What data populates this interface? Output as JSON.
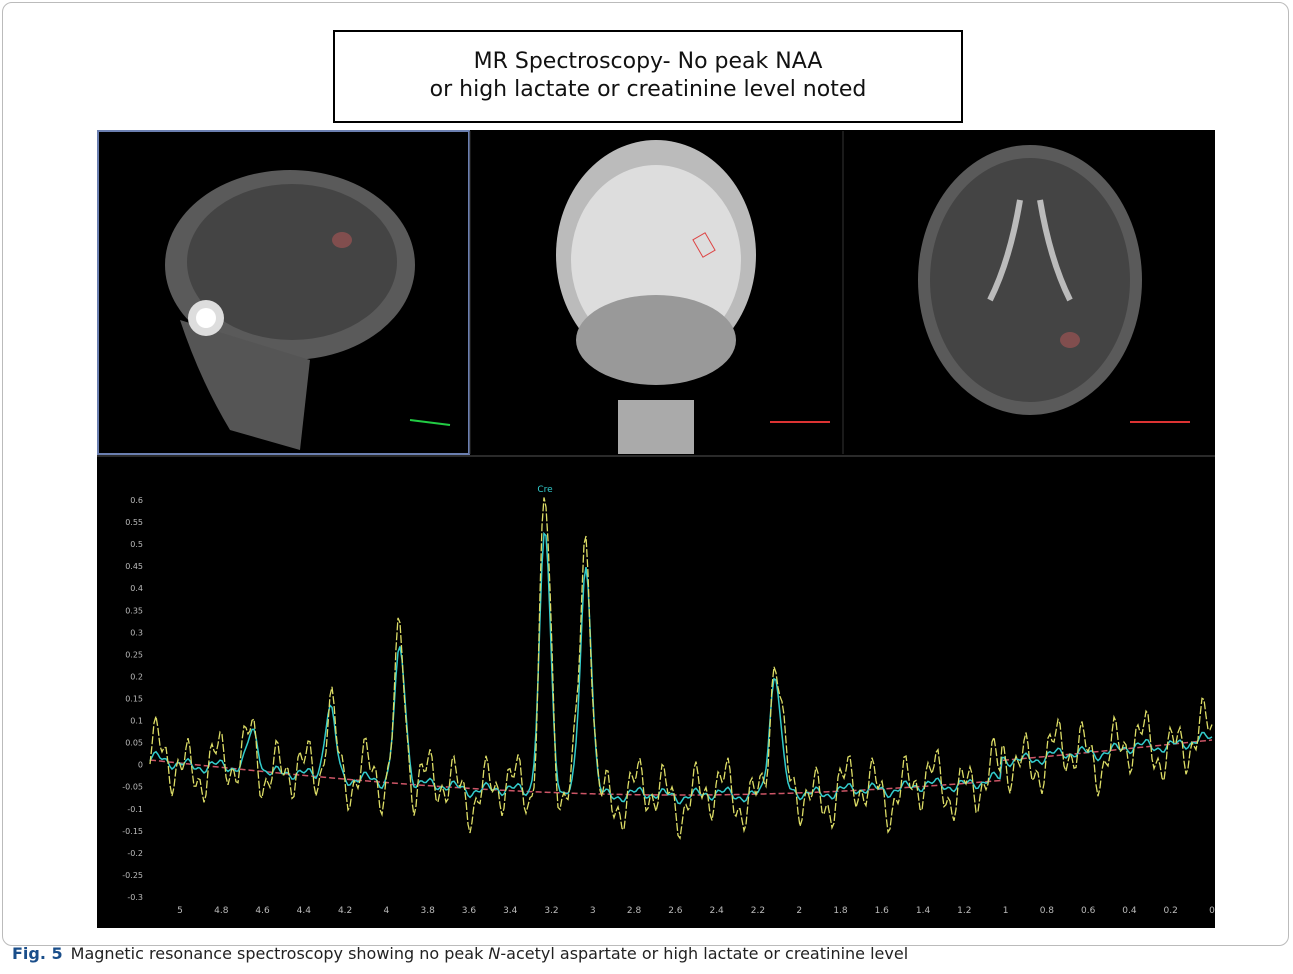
{
  "figure": {
    "title_box": {
      "lines": [
        "MR Spectroscopy- No peak NAA",
        "or high lactate or creatinine level noted"
      ]
    },
    "spectrum": {
      "peak_label": "Cre",
      "xticks": [
        "5",
        "4.8",
        "4.6",
        "4.4",
        "4.2",
        "4",
        "3.8",
        "3.6",
        "3.4",
        "3.2",
        "3",
        "2.8",
        "2.6",
        "2.4",
        "2.2",
        "2",
        "1.8",
        "1.6",
        "1.4",
        "1.2",
        "1",
        "0.8",
        "0.6",
        "0.4",
        "0.2",
        "0"
      ],
      "yticks": [
        "0.6",
        "0.55",
        "0.5",
        "0.45",
        "0.4",
        "0.35",
        "0.3",
        "0.25",
        "0.2",
        "0.15",
        "0.1",
        "0.05",
        "0",
        "-0.05",
        "-0.1",
        "-0.15",
        "-0.2",
        "-0.25",
        "-0.3"
      ]
    },
    "caption": {
      "label": "Fig. 5",
      "text_before": "Magnetic resonance spectroscopy showing no peak ",
      "italic": "N",
      "text_after": "-acetyl aspartate or high lactate or creatinine level"
    }
  }
}
